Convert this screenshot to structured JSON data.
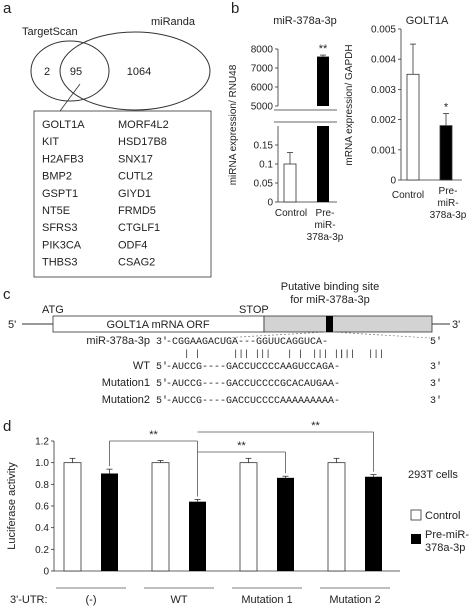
{
  "panel_a": {
    "label": "a",
    "venn": {
      "left_label": "TargetScan",
      "right_label": "miRanda",
      "left_only": "2",
      "overlap": "95",
      "right_only": "1064"
    },
    "genes_col1": [
      "GOLT1A",
      "KIT",
      "H2AFB3",
      "BMP2",
      "GSPT1",
      "NT5E",
      "SFRS3",
      "PIK3CA",
      "THBS3"
    ],
    "genes_col2": [
      "MORF4L2",
      "HSD17B8",
      "SNX17",
      "CUTL2",
      "GIYD1",
      "FRMD5",
      "CTGLF1",
      "ODF4",
      "CSAG2"
    ]
  },
  "panel_b": {
    "label": "b"
  },
  "panel_c": {
    "label": "c",
    "five_prime": "5'",
    "three_prime": "3'",
    "atg": "ATG",
    "stop": "STOP",
    "orf_label": "GOLT1A mRNA ORF",
    "site_label_1": "Putative binding site",
    "site_label_2": "for miR-378a-3p",
    "alignment": [
      {
        "name": "miR-378a-3p",
        "p1": "3'",
        "seq": "-CGGAAGACUGA---GGUUCAGGUCA-",
        "p2": "5'"
      },
      {
        "name": "WT",
        "p1": "5'",
        "seq": "-AUCCG----GACCUCCCCAAGUCCAGA-",
        "p2": "3'"
      },
      {
        "name": "Mutation1",
        "p1": "5'",
        "seq": "-AUCCG----GACCUCCCCGCACAUGAA-",
        "p2": "3'"
      },
      {
        "name": "Mutation2",
        "p1": "5'",
        "seq": "-AUCCG----GACCUCCCCAAAAAAAAA-",
        "p2": "3'"
      }
    ],
    "pairs": [
      "| |",
      "|||  |||",
      "| |",
      "|||  |||",
      "| |",
      "|||"
    ]
  },
  "panel_d": {
    "label": "d",
    "cell_label": "293T cells",
    "utr_label": "3'-UTR:",
    "legend": [
      "Control",
      "Pre-miR-",
      "378a-3p"
    ]
  },
  "chart_data": [
    {
      "type": "bar",
      "title": "miR-378a-3p",
      "ylabel": "miRNA expression/ RNU48",
      "categories": [
        "Control",
        "Pre-miR-378a-3p"
      ],
      "category_labels": [
        [
          "Control"
        ],
        [
          "Pre-",
          "miR-",
          "378a-3p"
        ]
      ],
      "values": [
        0.1,
        7600
      ],
      "errors": [
        0.03,
        80
      ],
      "axis_break": true,
      "ylim_lower": [
        0,
        0.2
      ],
      "ylim_upper": [
        5000,
        8000
      ],
      "yticks_lower": [
        "0",
        "0.05",
        "0.1",
        "0.15"
      ],
      "yticks_upper": [
        "5000",
        "6000",
        "7000",
        "8000"
      ],
      "significance": [
        "",
        "**"
      ],
      "colors": [
        "#ffffff",
        "#000000"
      ]
    },
    {
      "type": "bar",
      "title": "GOLT1A",
      "ylabel": "mRNA expression/ GAPDH",
      "categories": [
        "Control",
        "Pre-miR-378a-3p"
      ],
      "category_labels": [
        [
          "Control"
        ],
        [
          "Pre-",
          "miR-",
          "378a-3p"
        ]
      ],
      "values": [
        0.0035,
        0.0018
      ],
      "errors": [
        0.001,
        0.0004
      ],
      "ylim": [
        0,
        0.005
      ],
      "yticks": [
        "0",
        "0.001",
        "0.002",
        "0.003",
        "0.004",
        "0.005"
      ],
      "significance": [
        "",
        "*"
      ],
      "colors": [
        "#ffffff",
        "#000000"
      ]
    },
    {
      "type": "bar",
      "ylabel": "Luciferase activity",
      "categories": [
        "(-)",
        "WT",
        "Mutation 1",
        "Mutation 2"
      ],
      "series": [
        {
          "name": "Control",
          "values": [
            1.0,
            1.0,
            1.0,
            1.0
          ],
          "errors": [
            0.04,
            0.02,
            0.04,
            0.04
          ],
          "color": "#ffffff"
        },
        {
          "name": "Pre-miR-378a-3p",
          "values": [
            0.9,
            0.64,
            0.86,
            0.87
          ],
          "errors": [
            0.04,
            0.02,
            0.015,
            0.02
          ],
          "color": "#000000"
        }
      ],
      "ylim": [
        0,
        1.2
      ],
      "yticks": [
        "0",
        "0.2",
        "0.4",
        "0.6",
        "0.8",
        "1.0",
        "1.2"
      ],
      "comparisons": [
        "**",
        "**",
        "**"
      ],
      "legend_position": "right"
    }
  ]
}
